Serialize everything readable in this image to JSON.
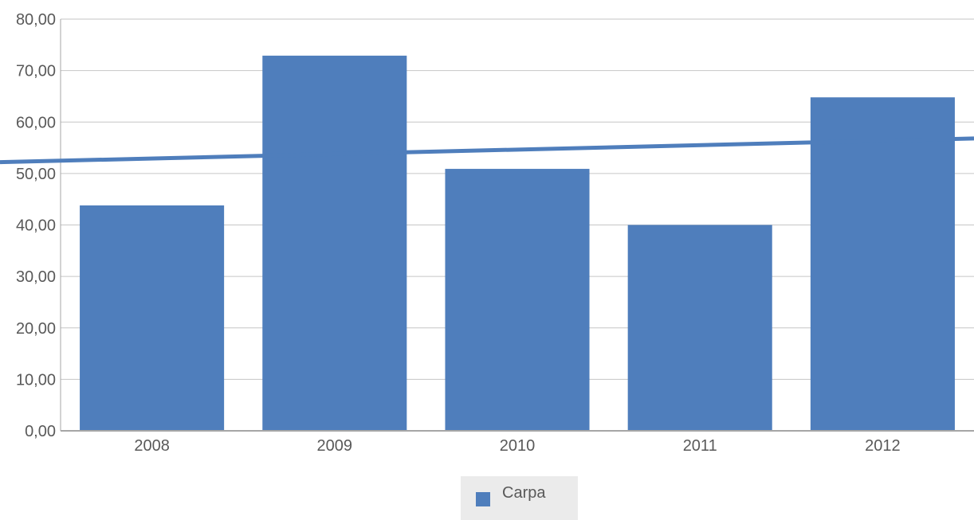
{
  "chart_data": {
    "type": "bar",
    "categories": [
      "2008",
      "2009",
      "2010",
      "2011",
      "2012"
    ],
    "series": [
      {
        "name": "Carpa",
        "values": [
          43.8,
          72.9,
          50.9,
          40.0,
          64.8
        ],
        "color": "#4f7ebc"
      }
    ],
    "trendline": {
      "type": "linear",
      "color": "#4f7ebc",
      "start_value": 52.2,
      "end_value": 56.8
    },
    "ylim": [
      0,
      80
    ],
    "yticks": [
      "0,00",
      "10,00",
      "20,00",
      "30,00",
      "40,00",
      "50,00",
      "60,00",
      "70,00",
      "80,00"
    ],
    "grid": true,
    "legend": {
      "position": "bottom",
      "label": "Carpa"
    }
  }
}
